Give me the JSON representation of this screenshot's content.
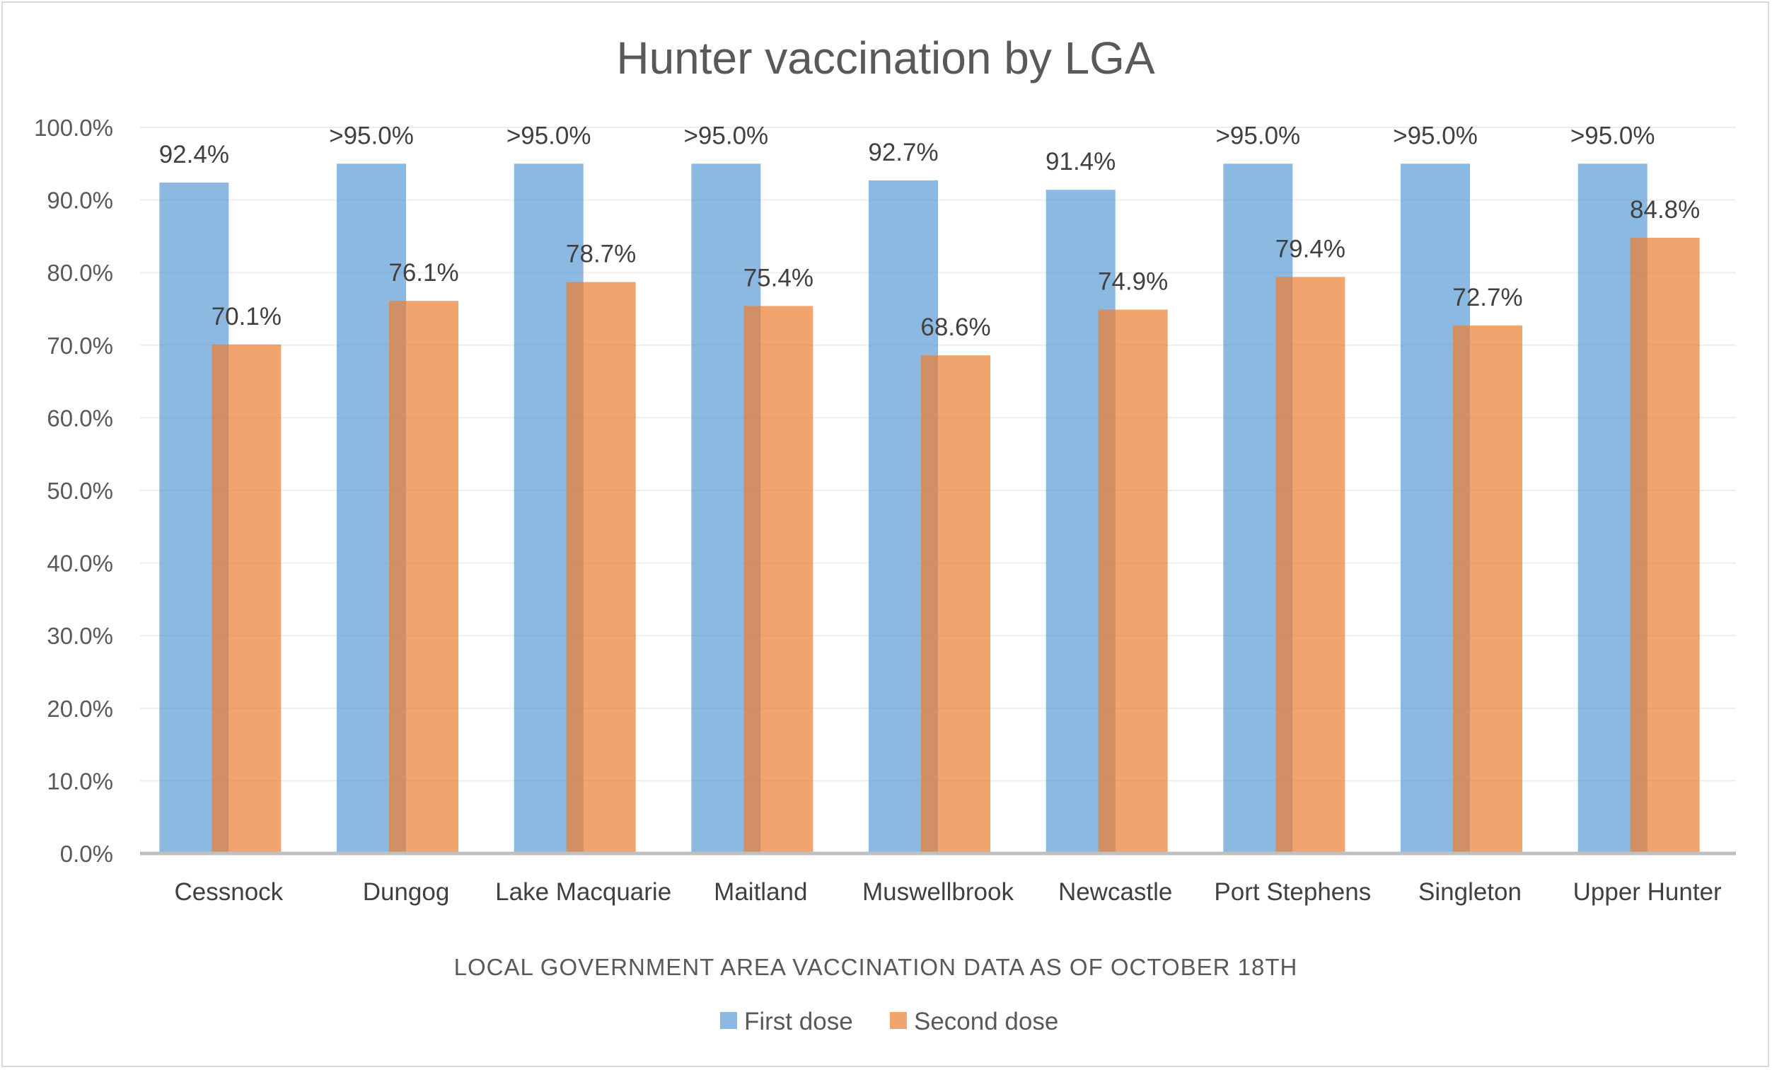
{
  "chart_data": {
    "type": "bar",
    "title": "Hunter vaccination by LGA",
    "xlabel": "LOCAL GOVERNMENT AREA VACCINATION DATA AS OF OCTOBER 18TH",
    "ylabel": "",
    "ylim": [
      0,
      100
    ],
    "ytick_step": 10,
    "ytick_labels": [
      "0.0%",
      "10.0%",
      "20.0%",
      "30.0%",
      "40.0%",
      "50.0%",
      "60.0%",
      "70.0%",
      "80.0%",
      "90.0%",
      "100.0%"
    ],
    "grid": true,
    "legend_position": "bottom",
    "categories": [
      "Cessnock",
      "Dungog",
      "Lake Macquarie",
      "Maitland",
      "Muswellbrook",
      "Newcastle",
      "Port Stephens",
      "Singleton",
      "Upper Hunter"
    ],
    "series": [
      {
        "name": "First dose",
        "color": "#5b9bd5",
        "values": [
          92.4,
          95.0,
          95.0,
          95.0,
          92.7,
          91.4,
          95.0,
          95.0,
          95.0
        ],
        "labels": [
          "92.4%",
          ">95.0%",
          ">95.0%",
          ">95.0%",
          "92.7%",
          "91.4%",
          ">95.0%",
          ">95.0%",
          ">95.0%"
        ]
      },
      {
        "name": "Second dose",
        "color": "#ed7d31",
        "values": [
          70.1,
          76.1,
          78.7,
          75.4,
          68.6,
          74.9,
          79.4,
          72.7,
          84.8
        ],
        "labels": [
          "70.1%",
          "76.1%",
          "78.7%",
          "75.4%",
          "68.6%",
          "74.9%",
          "79.4%",
          "72.7%",
          "84.8%"
        ]
      }
    ]
  }
}
